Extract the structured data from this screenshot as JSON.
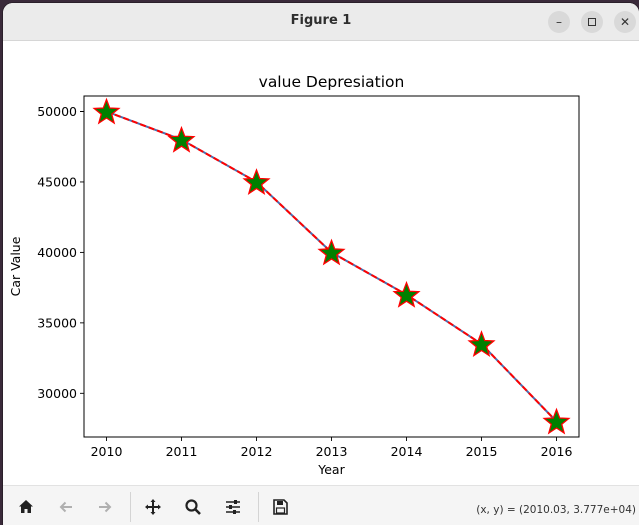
{
  "window": {
    "title": "Figure 1",
    "minimize_icon": "minimize-icon",
    "maximize_icon": "maximize-icon",
    "close_icon": "close-icon"
  },
  "toolbar": {
    "icons": [
      "home-icon",
      "back-arrow-icon",
      "forward-arrow-icon",
      "pan-move-icon",
      "zoom-magnifier-icon",
      "configure-subplots-icon",
      "save-disk-icon"
    ],
    "coords_text": "(x, y) = (2010.03, 3.777e+04)"
  },
  "chart_data": {
    "type": "line",
    "title": "value Depresiation",
    "xlabel": "Year",
    "ylabel": "Car Value",
    "x": [
      2010,
      2011,
      2012,
      2013,
      2014,
      2015,
      2016
    ],
    "series": [
      {
        "values": [
          50000,
          48000,
          45000,
          40000,
          37000,
          33500,
          28000
        ]
      }
    ],
    "xlim": [
      2009.7,
      2016.3
    ],
    "ylim": [
      26900,
      51100
    ],
    "xticks": [
      "2010",
      "2011",
      "2012",
      "2013",
      "2014",
      "2015",
      "2016"
    ],
    "yticks": [
      "30000",
      "35000",
      "40000",
      "45000",
      "50000"
    ],
    "line_color": "#ff0000",
    "line_style": "dashed",
    "marker": "star",
    "marker_face_color": "#008000",
    "marker_edge_color": "#ff0000",
    "grid": false,
    "legend": "none"
  }
}
